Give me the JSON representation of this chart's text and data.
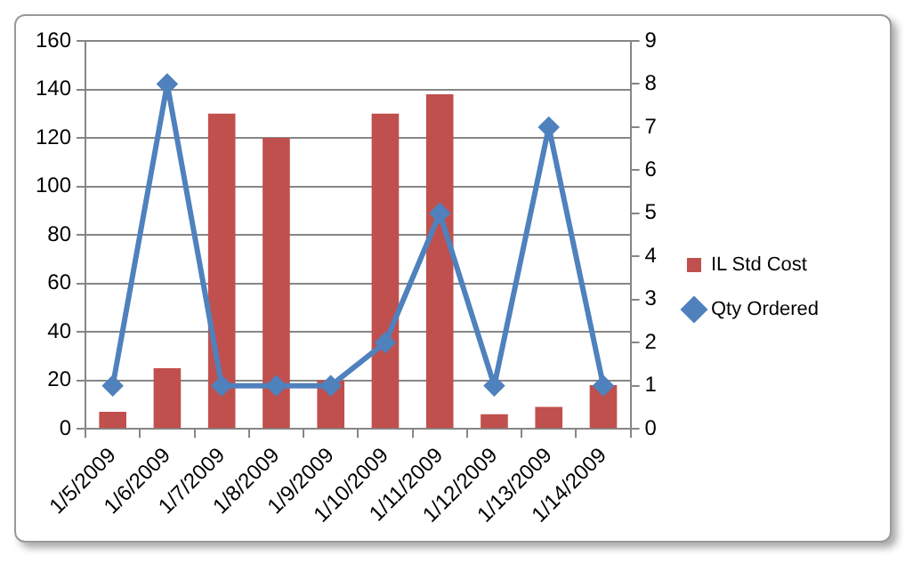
{
  "chart_data": {
    "type": "bar",
    "categories": [
      "1/5/2009",
      "1/6/2009",
      "1/7/2009",
      "1/8/2009",
      "1/9/2009",
      "1/10/2009",
      "1/11/2009",
      "1/12/2009",
      "1/13/2009",
      "1/14/2009"
    ],
    "series": [
      {
        "name": "IL Std Cost",
        "color": "#c0504d",
        "values": [
          7,
          25,
          130,
          120,
          20,
          130,
          138,
          6,
          9,
          18
        ]
      },
      {
        "name": "Qty Ordered",
        "type": "line",
        "axis": "y2",
        "marker": "diamond",
        "color": "#4f81bd",
        "values": [
          1,
          8,
          1,
          1,
          1,
          2,
          5,
          1,
          7,
          1
        ]
      }
    ],
    "ylim": [
      0,
      160
    ],
    "yticks": [
      0,
      20,
      40,
      60,
      80,
      100,
      120,
      140,
      160
    ],
    "y2lim": [
      0,
      9
    ],
    "y2ticks": [
      0,
      1,
      2,
      3,
      4,
      5,
      6,
      7,
      8,
      9
    ],
    "grid": "y",
    "legend": "right"
  }
}
